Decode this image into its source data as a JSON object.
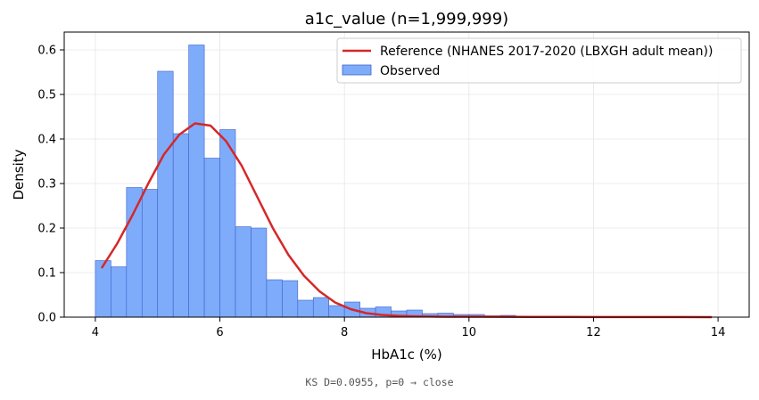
{
  "chart_data": {
    "type": "bar",
    "title": "a1c_value  (n=1,999,999)",
    "xlabel": "HbA1c (%)",
    "ylabel": "Density",
    "xlim": [
      3.5,
      14.5
    ],
    "ylim": [
      0,
      0.64
    ],
    "xticks": [
      4,
      6,
      8,
      10,
      12,
      14
    ],
    "yticks": [
      0.0,
      0.1,
      0.2,
      0.3,
      0.4,
      0.5,
      0.6
    ],
    "grid": true,
    "legend_position": "top-right",
    "bin_width": 0.25,
    "bins": [
      {
        "x0": 4.0,
        "value": 0.127
      },
      {
        "x0": 4.25,
        "value": 0.113
      },
      {
        "x0": 4.5,
        "value": 0.291
      },
      {
        "x0": 4.75,
        "value": 0.287
      },
      {
        "x0": 5.0,
        "value": 0.552
      },
      {
        "x0": 5.25,
        "value": 0.412
      },
      {
        "x0": 5.5,
        "value": 0.611
      },
      {
        "x0": 5.75,
        "value": 0.357
      },
      {
        "x0": 6.0,
        "value": 0.421
      },
      {
        "x0": 6.25,
        "value": 0.203
      },
      {
        "x0": 6.5,
        "value": 0.2
      },
      {
        "x0": 6.75,
        "value": 0.084
      },
      {
        "x0": 7.0,
        "value": 0.082
      },
      {
        "x0": 7.25,
        "value": 0.038
      },
      {
        "x0": 7.5,
        "value": 0.044
      },
      {
        "x0": 7.75,
        "value": 0.026
      },
      {
        "x0": 8.0,
        "value": 0.034
      },
      {
        "x0": 8.25,
        "value": 0.02
      },
      {
        "x0": 8.5,
        "value": 0.023
      },
      {
        "x0": 8.75,
        "value": 0.014
      },
      {
        "x0": 9.0,
        "value": 0.016
      },
      {
        "x0": 9.25,
        "value": 0.008
      },
      {
        "x0": 9.5,
        "value": 0.009
      },
      {
        "x0": 9.75,
        "value": 0.006
      },
      {
        "x0": 10.0,
        "value": 0.006
      },
      {
        "x0": 10.25,
        "value": 0.003
      },
      {
        "x0": 10.5,
        "value": 0.004
      },
      {
        "x0": 10.75,
        "value": 0.002
      }
    ],
    "reference": {
      "name": "Reference (NHANES 2017-2020 (LBXGH adult mean))",
      "x": [
        4.1,
        4.35,
        4.6,
        4.85,
        5.1,
        5.35,
        5.6,
        5.85,
        6.1,
        6.35,
        6.6,
        6.85,
        7.1,
        7.35,
        7.6,
        7.85,
        8.1,
        8.35,
        8.6,
        8.85,
        9.1,
        9.6,
        10.1,
        11.0,
        12.0,
        13.0,
        13.9
      ],
      "y": [
        0.11,
        0.165,
        0.23,
        0.3,
        0.365,
        0.41,
        0.435,
        0.43,
        0.395,
        0.34,
        0.27,
        0.2,
        0.14,
        0.093,
        0.058,
        0.033,
        0.018,
        0.009,
        0.005,
        0.003,
        0.002,
        0.001,
        0.001,
        0.0005,
        0.0003,
        0.0002,
        0.0001
      ]
    },
    "observed_name": "Observed",
    "colors": {
      "bar_fill": "#7fabfb",
      "bar_edge": "#3a63c8",
      "reference_line": "#d62728"
    }
  },
  "footer_text": "KS D=0.0955, p=0 → close"
}
